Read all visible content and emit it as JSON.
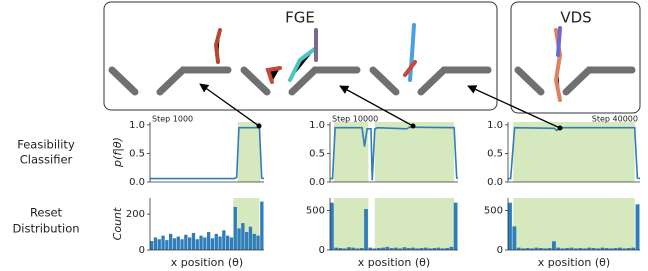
{
  "labels": {
    "fge": "FGE",
    "vds": "VDS",
    "row1": [
      "Feasibility",
      "Classifier"
    ],
    "row2": [
      "Reset",
      "Distribution"
    ]
  },
  "chart_data": [
    {
      "type": "line",
      "annotation": "Step 1000",
      "ylabel": "p(f|θ)",
      "color": "#2f7dba",
      "shade_color": "#d6e8bd",
      "xlim": [
        0,
        1
      ],
      "ylim": [
        0,
        1.05
      ],
      "yticks": [
        {
          "value": 0,
          "label": "0.0"
        },
        {
          "value": 0.5,
          "label": "0.5"
        },
        {
          "value": 1,
          "label": "1.0"
        }
      ],
      "shade": [
        [
          0.77,
          0.97
        ]
      ],
      "x": [
        0,
        0.74,
        0.76,
        0.78,
        0.96,
        0.98,
        1
      ],
      "values": [
        0.06,
        0.06,
        0.08,
        0.95,
        0.95,
        0.07,
        0.06
      ]
    },
    {
      "type": "line",
      "annotation": "Step 10000",
      "color": "#2f7dba",
      "shade_color": "#d6e8bd",
      "xlim": [
        0,
        1
      ],
      "ylim": [
        0,
        1.05
      ],
      "yticks": [
        {
          "value": 0,
          "label": "0.0"
        },
        {
          "value": 0.5,
          "label": "0.5"
        },
        {
          "value": 1,
          "label": "1.0"
        }
      ],
      "shade": [
        [
          0.03,
          0.3
        ],
        [
          0.35,
          0.97
        ]
      ],
      "x": [
        0,
        0.02,
        0.04,
        0.25,
        0.27,
        0.29,
        0.32,
        0.33,
        0.35,
        0.37,
        0.6,
        0.62,
        0.97,
        0.99,
        1
      ],
      "values": [
        0.06,
        0.06,
        0.95,
        0.95,
        0.62,
        0.93,
        0.93,
        0.03,
        0.93,
        0.95,
        0.93,
        0.96,
        0.95,
        0.07,
        0.06
      ]
    },
    {
      "type": "line",
      "annotation": "Step 40000",
      "color": "#2f7dba",
      "shade_color": "#d6e8bd",
      "xlim": [
        0,
        1
      ],
      "ylim": [
        0,
        1.05
      ],
      "yticks": [
        {
          "value": 0,
          "label": "0.0"
        },
        {
          "value": 0.5,
          "label": "0.5"
        },
        {
          "value": 1,
          "label": "1.0"
        }
      ],
      "shade": [
        [
          0.04,
          0.96
        ]
      ],
      "x": [
        0,
        0.02,
        0.05,
        0.35,
        0.37,
        0.39,
        0.96,
        0.98,
        1
      ],
      "values": [
        0.06,
        0.06,
        0.95,
        0.94,
        0.9,
        0.95,
        0.95,
        0.07,
        0.06
      ]
    },
    {
      "type": "bar",
      "ylabel": "Count",
      "xlabel": "x position (θ)",
      "color": "#2f7dba",
      "shade_color": "#d6e8bd",
      "xlim": [
        0,
        1
      ],
      "ylim": [
        0,
        290
      ],
      "yticks": [
        0,
        200
      ],
      "shade": [
        [
          0.73,
          0.96
        ]
      ],
      "values": [
        50,
        70,
        60,
        80,
        55,
        90,
        65,
        75,
        60,
        85,
        70,
        95,
        60,
        80,
        70,
        100,
        65,
        90,
        75,
        110,
        80,
        70,
        240,
        120,
        150,
        100,
        130,
        90,
        80,
        270
      ]
    },
    {
      "type": "bar",
      "xlabel": "x position (θ)",
      "color": "#2f7dba",
      "shade_color": "#d6e8bd",
      "xlim": [
        0,
        1
      ],
      "ylim": [
        0,
        660
      ],
      "yticks": [
        0,
        500
      ],
      "shade": [
        [
          0.03,
          0.3
        ],
        [
          0.35,
          0.97
        ]
      ],
      "values": [
        600,
        30,
        25,
        20,
        35,
        30,
        20,
        25,
        520,
        30,
        20,
        25,
        30,
        40,
        25,
        30,
        20,
        35,
        25,
        30,
        20,
        25,
        30,
        20,
        25,
        30,
        20,
        25,
        40,
        600
      ]
    },
    {
      "type": "bar",
      "xlabel": "x position (θ)",
      "color": "#2f7dba",
      "shade_color": "#d6e8bd",
      "xlim": [
        0,
        1
      ],
      "ylim": [
        0,
        660
      ],
      "yticks": [
        0,
        500
      ],
      "shade": [
        [
          0.04,
          0.96
        ]
      ],
      "values": [
        600,
        300,
        30,
        20,
        25,
        20,
        30,
        25,
        20,
        25,
        110,
        30,
        20,
        25,
        30,
        20,
        25,
        20,
        30,
        25,
        20,
        30,
        25,
        20,
        25,
        30,
        20,
        25,
        30,
        580
      ]
    }
  ]
}
